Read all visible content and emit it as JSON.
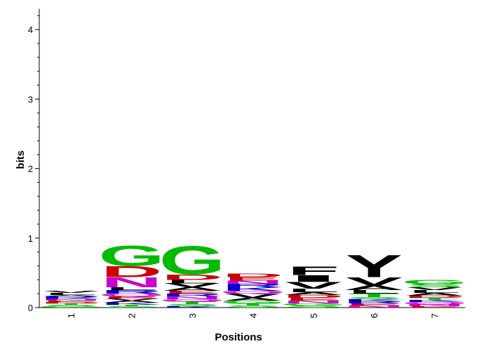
{
  "chart_data": {
    "type": "sequence-logo",
    "xlabel": "Positions",
    "ylabel": "bits",
    "ylim": [
      0,
      4.3
    ],
    "yticks": [
      "0",
      "1",
      "2",
      "3",
      "4"
    ],
    "colors": {
      "G": "#00bb00",
      "D": "#cc0000",
      "E": "#cc0000",
      "N": "#cc00cc",
      "Q": "#cc00cc",
      "S": "#00bb00",
      "T": "#00bb00",
      "C": "#00bb00",
      "Y": "#000000",
      "V": "#000000",
      "L": "#000000",
      "I": "#000000",
      "F": "#000000",
      "A": "#000000",
      "P": "#000000",
      "M": "#000000",
      "W": "#000000",
      "K": "#0000cc",
      "R": "#0000cc",
      "H": "#0000cc"
    },
    "positions": [
      {
        "label": "1",
        "stack": [
          [
            "G",
            0.02
          ],
          [
            "S",
            0.02
          ],
          [
            "T",
            0.02
          ],
          [
            "D",
            0.02
          ],
          [
            "E",
            0.02
          ],
          [
            "N",
            0.02
          ],
          [
            "K",
            0.02
          ],
          [
            "R",
            0.02
          ],
          [
            "A",
            0.02
          ],
          [
            "L",
            0.03
          ],
          [
            "V",
            0.03
          ]
        ]
      },
      {
        "label": "2",
        "stack": [
          [
            "S",
            0.02
          ],
          [
            "T",
            0.02
          ],
          [
            "K",
            0.03
          ],
          [
            "A",
            0.03
          ],
          [
            "V",
            0.03
          ],
          [
            "E",
            0.03
          ],
          [
            "Q",
            0.04
          ],
          [
            "R",
            0.05
          ],
          [
            "L",
            0.04
          ],
          [
            "N",
            0.15
          ],
          [
            "D",
            0.16
          ],
          [
            "G",
            0.3
          ]
        ]
      },
      {
        "label": "3",
        "stack": [
          [
            "K",
            0.02
          ],
          [
            "S",
            0.03
          ],
          [
            "T",
            0.04
          ],
          [
            "Q",
            0.03
          ],
          [
            "N",
            0.04
          ],
          [
            "R",
            0.04
          ],
          [
            "E",
            0.04
          ],
          [
            "A",
            0.05
          ],
          [
            "V",
            0.06
          ],
          [
            "L",
            0.05
          ],
          [
            "D",
            0.08
          ],
          [
            "G",
            0.42
          ]
        ]
      },
      {
        "label": "4",
        "stack": [
          [
            "S",
            0.03
          ],
          [
            "T",
            0.03
          ],
          [
            "G",
            0.04
          ],
          [
            "A",
            0.04
          ],
          [
            "V",
            0.06
          ],
          [
            "Q",
            0.04
          ],
          [
            "K",
            0.05
          ],
          [
            "R",
            0.05
          ],
          [
            "N",
            0.05
          ],
          [
            "E",
            0.05
          ],
          [
            "D",
            0.05
          ]
        ]
      },
      {
        "label": "5",
        "stack": [
          [
            "S",
            0.03
          ],
          [
            "G",
            0.03
          ],
          [
            "N",
            0.04
          ],
          [
            "E",
            0.04
          ],
          [
            "D",
            0.04
          ],
          [
            "A",
            0.04
          ],
          [
            "L",
            0.05
          ],
          [
            "V",
            0.1
          ],
          [
            "I",
            0.1
          ],
          [
            "F",
            0.13
          ]
        ]
      },
      {
        "label": "6",
        "stack": [
          [
            "N",
            0.03
          ],
          [
            "E",
            0.03
          ],
          [
            "R",
            0.03
          ],
          [
            "K",
            0.03
          ],
          [
            "S",
            0.03
          ],
          [
            "T",
            0.05
          ],
          [
            "L",
            0.05
          ],
          [
            "A",
            0.07
          ],
          [
            "V",
            0.12
          ],
          [
            "Y",
            0.33
          ]
        ]
      },
      {
        "label": "7",
        "stack": [
          [
            "E",
            0.02
          ],
          [
            "N",
            0.03
          ],
          [
            "Q",
            0.03
          ],
          [
            "K",
            0.03
          ],
          [
            "T",
            0.03
          ],
          [
            "D",
            0.03
          ],
          [
            "A",
            0.04
          ],
          [
            "L",
            0.04
          ],
          [
            "V",
            0.04
          ],
          [
            "S",
            0.05
          ],
          [
            "G",
            0.06
          ]
        ]
      }
    ]
  }
}
